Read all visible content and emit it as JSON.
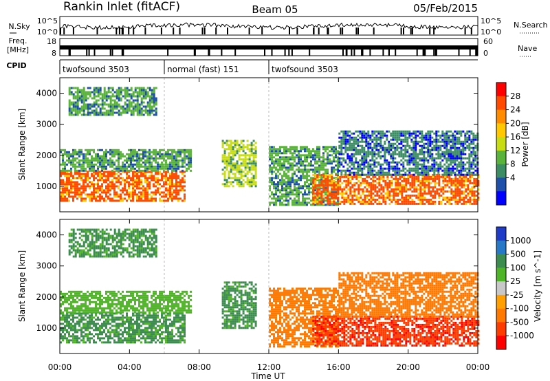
{
  "header": {
    "station": "Rankin Inlet (fitACF)",
    "beam": "Beam 05",
    "date": "05/Feb/2015"
  },
  "noise_panel": {
    "left_label": "N.Sky",
    "right_label": "N.Search",
    "left_ticks": [
      "10^5",
      "10^0"
    ],
    "right_ticks": [
      "10^5",
      "10^0"
    ]
  },
  "freq_panel": {
    "left_label_1": "Freq.",
    "left_label_2": "[MHz]",
    "right_label": "Nave",
    "left_ticks": [
      "18",
      "8"
    ],
    "right_ticks": [
      "60",
      "0"
    ]
  },
  "cpid_panel": {
    "label": "CPID",
    "segments": [
      {
        "text": "twofsound 3503",
        "start_hour": 0,
        "end_hour": 6
      },
      {
        "text": "normal (fast) 151",
        "start_hour": 6,
        "end_hour": 12
      },
      {
        "text": "twofsound 3503",
        "start_hour": 12,
        "end_hour": 24
      }
    ]
  },
  "axes": {
    "ylabel": "Slant Range [km]",
    "xlabel": "Time UT",
    "x_ticks": [
      "00:00",
      "04:00",
      "08:00",
      "12:00",
      "16:00",
      "20:00",
      "00:00"
    ],
    "y_ticks": [
      "1000",
      "2000",
      "3000",
      "4000"
    ]
  },
  "power_colorbar": {
    "label": "Power [dB]",
    "ticks": [
      "28",
      "24",
      "20",
      "16",
      "12",
      "8",
      "4"
    ],
    "colors": [
      "#ff0000",
      "#ff4a00",
      "#ff8c00",
      "#ffc800",
      "#c8dc14",
      "#5ab43c",
      "#3c8c64",
      "#1e50aa",
      "#0000ff"
    ]
  },
  "velocity_colorbar": {
    "label": "Velocity [m s^-1]",
    "ticks": [
      "1000",
      "500",
      "100",
      "25",
      "-25",
      "-100",
      "-500",
      "-1000"
    ],
    "colors": [
      "#1e3cc8",
      "#2878c8",
      "#3c8c50",
      "#50b428",
      "#c8c8c8",
      "#ffa000",
      "#ff7800",
      "#ff3c00",
      "#ff0000"
    ]
  },
  "chart_data": [
    {
      "type": "heatmap",
      "name": "Power",
      "x_range_hours": [
        0,
        24
      ],
      "y_range_km": [
        180,
        4500
      ],
      "value_range_db": [
        0,
        32
      ],
      "regions": [
        {
          "start_hour": 0.0,
          "end_hour": 7.2,
          "range_low_km": 550,
          "range_high_km": 1500,
          "value_db": 28
        },
        {
          "start_hour": 0.0,
          "end_hour": 7.5,
          "range_low_km": 1500,
          "range_high_km": 2200,
          "value_db": 12
        },
        {
          "start_hour": 0.5,
          "end_hour": 5.5,
          "range_low_km": 3300,
          "range_high_km": 4200,
          "value_db": 12
        },
        {
          "start_hour": 9.3,
          "end_hour": 11.3,
          "range_low_km": 1000,
          "range_high_km": 2500,
          "value_db": 16
        },
        {
          "start_hour": 12.0,
          "end_hour": 16.0,
          "range_low_km": 400,
          "range_high_km": 2300,
          "value_db": 12
        },
        {
          "start_hour": 14.5,
          "end_hour": 24.0,
          "range_low_km": 450,
          "range_high_km": 1400,
          "value_db": 28
        },
        {
          "start_hour": 16.0,
          "end_hour": 24.0,
          "range_low_km": 1400,
          "range_high_km": 2800,
          "value_db": 8
        }
      ]
    },
    {
      "type": "heatmap",
      "name": "Velocity",
      "x_range_hours": [
        0,
        24
      ],
      "y_range_km": [
        180,
        4500
      ],
      "value_range_ms": [
        -1000,
        1000
      ],
      "regions": [
        {
          "start_hour": 0.0,
          "end_hour": 7.2,
          "range_low_km": 550,
          "range_high_km": 1500,
          "value_ms": 100
        },
        {
          "start_hour": 0.0,
          "end_hour": 7.5,
          "range_low_km": 1500,
          "range_high_km": 2200,
          "value_ms": 25
        },
        {
          "start_hour": 0.5,
          "end_hour": 5.5,
          "range_low_km": 3300,
          "range_high_km": 4200,
          "value_ms": 100
        },
        {
          "start_hour": 9.3,
          "end_hour": 11.3,
          "range_low_km": 1000,
          "range_high_km": 2500,
          "value_ms": 100
        },
        {
          "start_hour": 12.0,
          "end_hour": 16.0,
          "range_low_km": 400,
          "range_high_km": 2300,
          "value_ms": -100
        },
        {
          "start_hour": 14.5,
          "end_hour": 24.0,
          "range_low_km": 450,
          "range_high_km": 1400,
          "value_ms": -500
        },
        {
          "start_hour": 16.0,
          "end_hour": 24.0,
          "range_low_km": 1400,
          "range_high_km": 2800,
          "value_ms": -100
        }
      ]
    }
  ]
}
